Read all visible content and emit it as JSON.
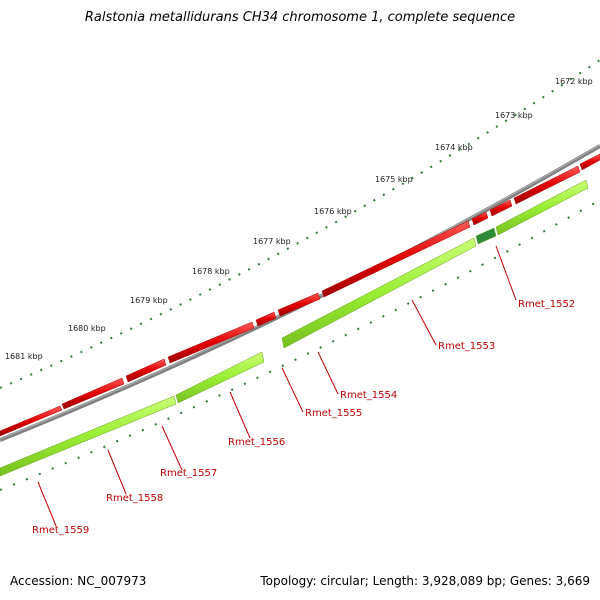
{
  "title": "Ralstonia metallidurans CH34 chromosome 1, complete sequence",
  "footer": {
    "accession": "Accession: NC_007973",
    "summary": "Topology: circular; Length: 3,928,089 bp; Genes: 3,669"
  },
  "ruler_labels": [
    "1672 kbp",
    "1673 kbp",
    "1674 kbp",
    "1675 kbp",
    "1676 kbp",
    "1677 kbp",
    "1678 kbp",
    "1679 kbp",
    "1680 kbp",
    "1681 kbp"
  ],
  "gene_labels": [
    "Rmet_1552",
    "Rmet_1553",
    "Rmet_1554",
    "Rmet_1555",
    "Rmet_1556",
    "Rmet_1557",
    "Rmet_1558",
    "Rmet_1559"
  ],
  "colors": {
    "backbone": "#808080",
    "forward_gene": "#e60000",
    "cds": "#99ee33",
    "cds_highlight": "#2e8b3a",
    "ticks": "#2e7d32",
    "label": "#c00000"
  }
}
